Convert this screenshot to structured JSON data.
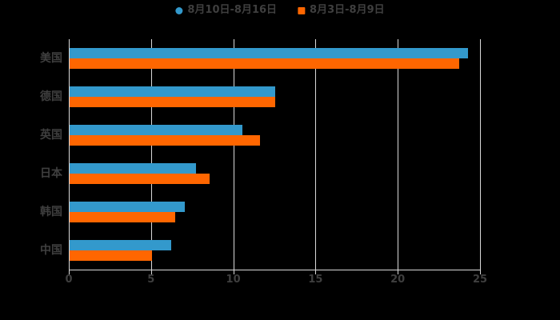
{
  "page": {
    "background": "#000000",
    "text_color": "#3f3f3f",
    "grid_color": "#d9d9d9"
  },
  "legend": {
    "items": [
      {
        "label": "8月10日-8月16日",
        "color": "#3399cc",
        "marker": "circle"
      },
      {
        "label": "8月3日-8月9日",
        "color": "#ff6600",
        "marker": "square"
      }
    ]
  },
  "chart_data": {
    "type": "bar",
    "orientation": "horizontal",
    "title": "",
    "xlabel": "",
    "ylabel": "",
    "categories": [
      "美国",
      "德国",
      "英国",
      "日本",
      "韩国",
      "中国"
    ],
    "series": [
      {
        "name": "8月10日-8月16日",
        "color": "#3399cc",
        "values": [
          24.2,
          12.5,
          10.5,
          7.7,
          7.0,
          6.2
        ]
      },
      {
        "name": "8月3日-8月9日",
        "color": "#ff6600",
        "values": [
          23.7,
          12.5,
          11.6,
          8.5,
          6.4,
          5.0
        ]
      }
    ],
    "xlim": [
      0,
      25
    ],
    "xticks": [
      0,
      5,
      10,
      15,
      20,
      25
    ],
    "grid": true,
    "legend_position": "top-center"
  }
}
